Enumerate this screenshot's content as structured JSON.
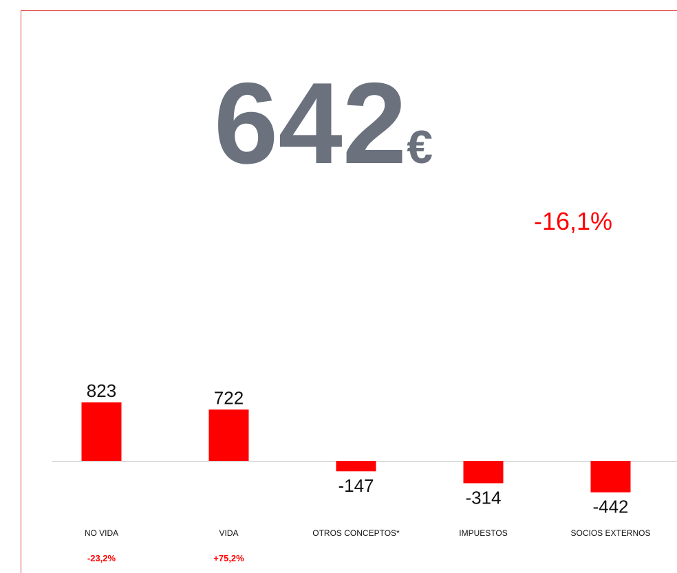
{
  "chart_data": {
    "type": "bar",
    "total": "642",
    "total_unit": "€",
    "change": "-16,1%",
    "categories": [
      "NO VIDA",
      "VIDA",
      "OTROS CONCEPTOS*",
      "IMPUESTOS",
      "SOCIOS EXTERNOS"
    ],
    "values": [
      823,
      722,
      -147,
      -314,
      -442
    ],
    "category_changes": [
      "-23,2%",
      "+75,2%",
      null,
      null,
      null
    ],
    "color": "#ff0000",
    "ylim": [
      -500,
      1000
    ]
  }
}
